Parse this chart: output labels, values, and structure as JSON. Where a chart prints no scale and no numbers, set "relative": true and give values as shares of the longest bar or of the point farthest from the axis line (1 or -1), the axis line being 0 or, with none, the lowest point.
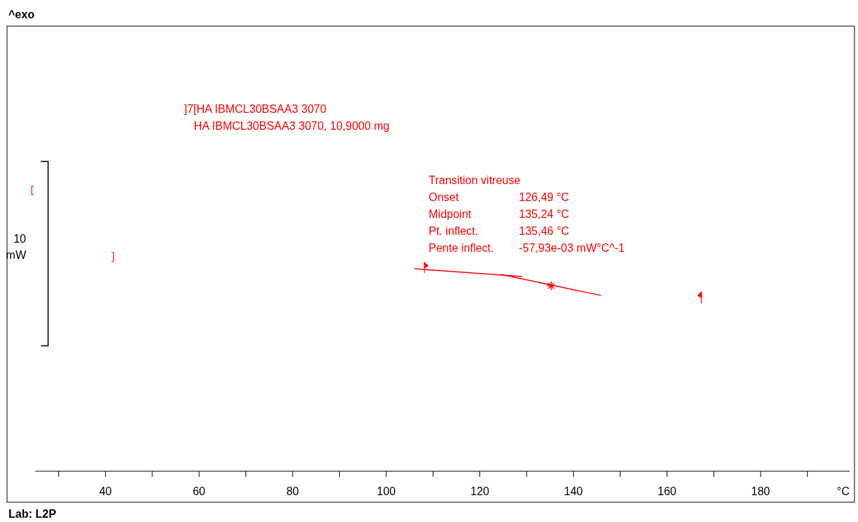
{
  "chart_data": {
    "type": "line",
    "relative": true,
    "xlabel": "°C",
    "xlim": [
      25,
      199
    ],
    "xticks": [
      {
        "value": 30,
        "label": null
      },
      40,
      {
        "value": 50,
        "label": null
      },
      60,
      {
        "value": 70,
        "label": null
      },
      80,
      {
        "value": 90,
        "label": null
      },
      100,
      {
        "value": 110,
        "label": null
      },
      120,
      {
        "value": 130,
        "label": null
      },
      140,
      {
        "value": 150,
        "label": null
      },
      160,
      {
        "value": 170,
        "label": null
      },
      180,
      {
        "value": 190,
        "label": null
      }
    ],
    "grid": false,
    "legend": false,
    "line_style": "solid",
    "marker": "none",
    "series": [
      {
        "type": "line",
        "color": "#ff0000",
        "x": [
          106.0,
          129.0
        ],
        "values": [
          1,
          0.962
        ]
      },
      {
        "type": "line",
        "color": "#ff0000",
        "x": [
          124.5,
          145.9
        ],
        "values": [
          0.972,
          0.868
        ]
      },
      {
        "type": "scatter",
        "marker": "cross",
        "color": "#ff0000",
        "x": [
          135.24
        ],
        "values": [
          0.916
        ]
      }
    ],
    "annotations": [
      "^exo",
      "Lab: L2P",
      "10",
      "mW",
      "]7[HA IBMCL30BSAA3 3070",
      "HA IBMCL30BSAA3 3070, 10,9000 mg",
      "Transition vitreuse",
      "Onset",
      "126,49 °C",
      "Midpoint",
      "135,24 °C",
      "Pt. inflect.",
      "135,46 °C",
      "Pente inflect.",
      "-57,93e-03 mW°C^-1"
    ]
  }
}
